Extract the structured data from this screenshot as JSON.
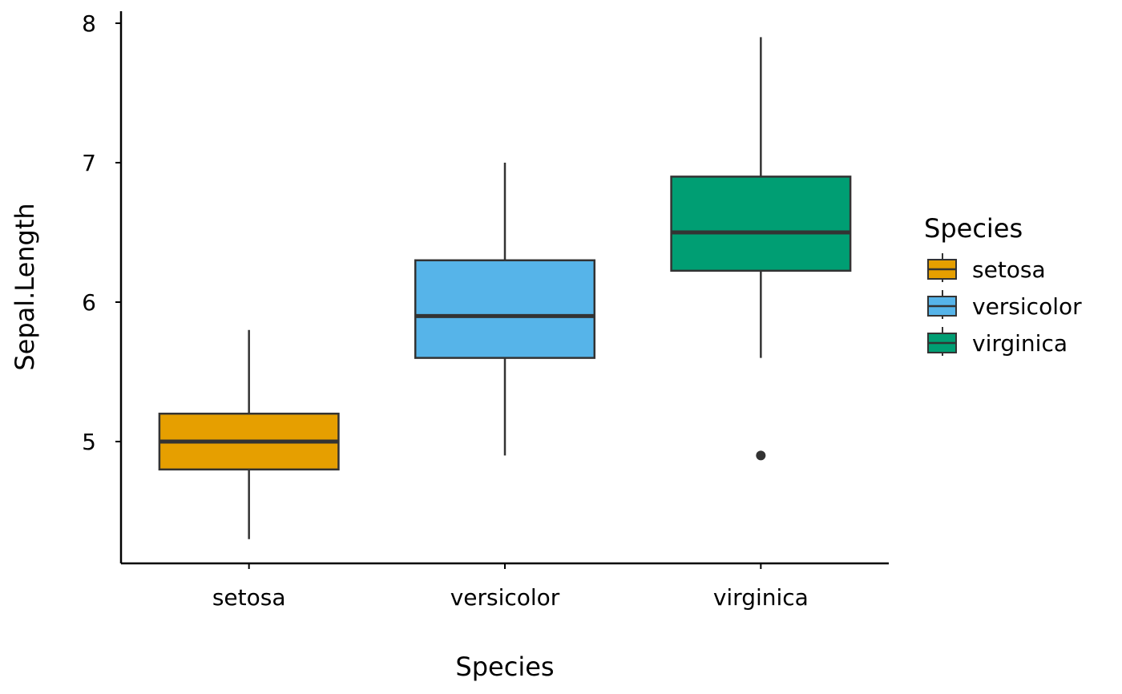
{
  "chart_data": {
    "type": "boxplot",
    "xlabel": "Species",
    "ylabel": "Sepal.Length",
    "categories": [
      "setosa",
      "versicolor",
      "virginica"
    ],
    "ylim": [
      4.2,
      8.1
    ],
    "yticks": [
      5,
      6,
      7,
      8
    ],
    "grid": false,
    "legend": {
      "title": "Species",
      "placement": "right",
      "entries": [
        "setosa",
        "versicolor",
        "virginica"
      ]
    },
    "series": [
      {
        "category": "setosa",
        "color": "#E69F00",
        "min": 4.3,
        "q1": 4.8,
        "median": 5.0,
        "q3": 5.2,
        "max": 5.8,
        "outliers": []
      },
      {
        "category": "versicolor",
        "color": "#56B4E9",
        "min": 4.9,
        "q1": 5.6,
        "median": 5.9,
        "q3": 6.3,
        "max": 7.0,
        "outliers": []
      },
      {
        "category": "virginica",
        "color": "#009E73",
        "min": 5.6,
        "q1": 6.225,
        "median": 6.5,
        "q3": 6.9,
        "max": 7.9,
        "outliers": [
          4.9
        ]
      }
    ]
  }
}
